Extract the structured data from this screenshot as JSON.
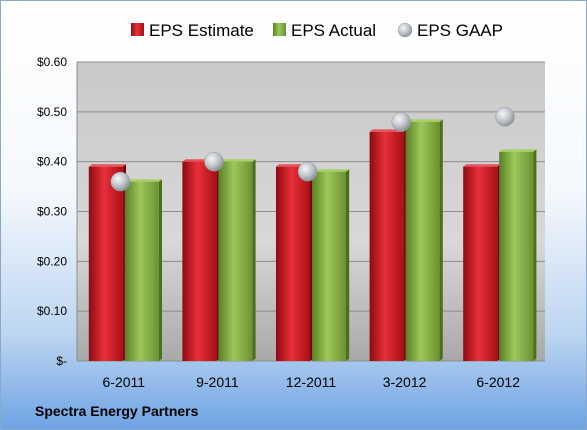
{
  "chart_data": {
    "type": "bar",
    "categories": [
      "6-2011",
      "9-2011",
      "12-2011",
      "3-2012",
      "6-2012"
    ],
    "series": [
      {
        "name": "EPS Estimate",
        "values": [
          0.39,
          0.4,
          0.39,
          0.46,
          0.39
        ],
        "color": "#c0141c",
        "mark": "bar"
      },
      {
        "name": "EPS Actual",
        "values": [
          0.36,
          0.4,
          0.38,
          0.48,
          0.42
        ],
        "color": "#7aa53a",
        "mark": "bar"
      },
      {
        "name": "EPS GAAP",
        "values": [
          0.36,
          0.4,
          0.38,
          0.48,
          0.49
        ],
        "color": "#b8bcc4",
        "mark": "circle"
      }
    ],
    "ylim": [
      0,
      0.6
    ],
    "yticks": [
      {
        "value": 0,
        "label": "$-"
      },
      {
        "value": 0.1,
        "label": "$0.10"
      },
      {
        "value": 0.2,
        "label": "$0.20"
      },
      {
        "value": 0.3,
        "label": "$0.30"
      },
      {
        "value": 0.4,
        "label": "$0.40"
      },
      {
        "value": 0.5,
        "label": "$0.50"
      },
      {
        "value": 0.6,
        "label": "$0.60"
      }
    ],
    "grid": true,
    "legend": "top"
  },
  "company": "Spectra Energy Partners"
}
